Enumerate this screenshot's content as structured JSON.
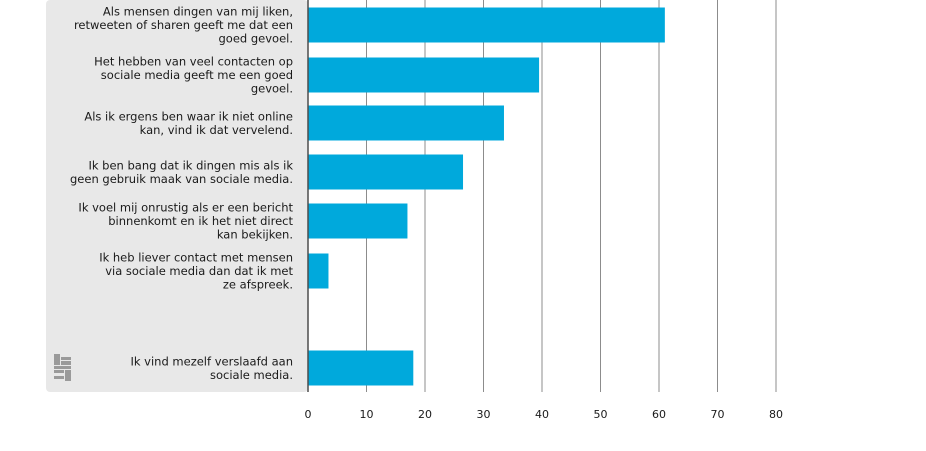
{
  "chart_data": {
    "type": "bar",
    "orientation": "horizontal",
    "bar_color": "#00A9DC",
    "panel_color": "#E8E8E8",
    "grid_color": "#8C8C8C",
    "categories": [
      "Als mensen dingen van mij liken, retweeten of sharen geeft me dat een goed gevoel.",
      "Het hebben van veel contacten op sociale media geeft me een goed gevoel.",
      "Als ik ergens ben waar ik niet online kan, vind ik dat vervelend.",
      "Ik ben bang dat ik dingen mis als ik geen gebruik maak van sociale media.",
      "Ik voel mij onrustig als er een bericht binnenkomt en ik het niet direct kan bekijken.",
      "Ik heb liever contact met mensen via sociale media dan dat ik met ze afspreek.",
      "Ik vind mezelf verslaafd aan sociale media."
    ],
    "category_lines": [
      [
        "Als mensen dingen van mij liken,",
        "retweeten of sharen geeft me dat een",
        "goed gevoel."
      ],
      [
        "Het hebben van veel contacten op",
        "sociale media geeft me een goed",
        "gevoel."
      ],
      [
        "Als ik ergens ben waar ik niet online",
        "kan, vind ik dat vervelend."
      ],
      [
        "Ik ben bang dat ik dingen mis als ik",
        "geen gebruik maak van sociale media."
      ],
      [
        "Ik voel mij onrustig als er een bericht",
        "binnenkomt en ik het niet direct",
        "kan bekijken."
      ],
      [
        "Ik heb liever contact met mensen",
        "via sociale media dan dat ik met",
        "ze afspreek."
      ],
      [
        "Ik vind mezelf verslaafd aan",
        "sociale media."
      ]
    ],
    "values": [
      61,
      39.5,
      33.5,
      26.5,
      17,
      3.5,
      18
    ],
    "xlim": [
      0,
      80
    ],
    "x_ticks": [
      0,
      10,
      20,
      30,
      40,
      50,
      60,
      70,
      80
    ],
    "x_tick_labels": [
      "0",
      "10",
      "20",
      "30",
      "40",
      "50",
      "60",
      "70",
      "80"
    ],
    "grid": true
  },
  "logo": {
    "name": "cbs-logo-icon"
  }
}
